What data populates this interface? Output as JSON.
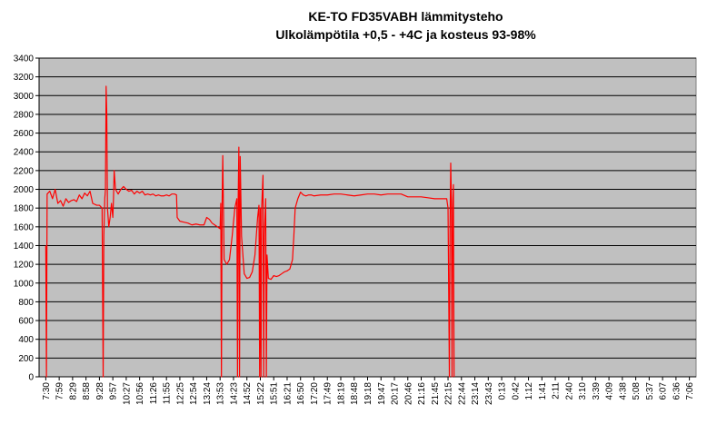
{
  "chart_data": {
    "type": "line",
    "title": "KE-TO FD35VABH lämmitysteho",
    "subtitle": "Ulkolämpötila  +0,5 - +4C ja kosteus 93-98%",
    "xlabel": "",
    "ylabel": "",
    "ylim": [
      0,
      3400
    ],
    "y_ticks": [
      0,
      200,
      400,
      600,
      800,
      1000,
      1200,
      1400,
      1600,
      1800,
      2000,
      2200,
      2400,
      2600,
      2800,
      3000,
      3200,
      3400
    ],
    "x_ticks": [
      "7:30",
      "7:59",
      "8:29",
      "8:58",
      "9:28",
      "9:57",
      "10:27",
      "10:56",
      "11:26",
      "11:55",
      "12:25",
      "12:54",
      "13:24",
      "13:53",
      "14:23",
      "14:52",
      "15:22",
      "15:51",
      "16:21",
      "16:50",
      "17:20",
      "17:49",
      "18:19",
      "18:48",
      "19:18",
      "19:47",
      "20:17",
      "20:46",
      "21:16",
      "21:45",
      "22:15",
      "22:44",
      "23:14",
      "23:43",
      "0:13",
      "0:42",
      "1:12",
      "1:41",
      "2:11",
      "2:40",
      "3:10",
      "3:39",
      "4:09",
      "4:38",
      "5:08",
      "5:37",
      "6:07",
      "6:36",
      "7:06"
    ],
    "grid": true,
    "legend": "none",
    "series_color": "#ff0000",
    "plot_background": "#c0c0c0",
    "series": [
      {
        "name": "",
        "points": [
          [
            0,
            1400
          ],
          [
            0.05,
            0
          ],
          [
            0.1,
            1950
          ],
          [
            0.3,
            1980
          ],
          [
            0.5,
            1900
          ],
          [
            0.7,
            2000
          ],
          [
            0.9,
            1850
          ],
          [
            1.1,
            1880
          ],
          [
            1.3,
            1820
          ],
          [
            1.5,
            1900
          ],
          [
            1.7,
            1860
          ],
          [
            1.9,
            1880
          ],
          [
            2.1,
            1890
          ],
          [
            2.3,
            1870
          ],
          [
            2.5,
            1940
          ],
          [
            2.7,
            1900
          ],
          [
            2.9,
            1960
          ],
          [
            3.1,
            1930
          ],
          [
            3.3,
            1980
          ],
          [
            3.5,
            1850
          ],
          [
            3.8,
            1830
          ],
          [
            4.0,
            1830
          ],
          [
            4.2,
            1800
          ],
          [
            4.28,
            0
          ],
          [
            4.33,
            1500
          ],
          [
            4.4,
            1900
          ],
          [
            4.45,
            2000
          ],
          [
            4.5,
            3100
          ],
          [
            4.55,
            2800
          ],
          [
            4.6,
            1800
          ],
          [
            4.7,
            1600
          ],
          [
            4.8,
            1700
          ],
          [
            4.9,
            1850
          ],
          [
            5.0,
            1700
          ],
          [
            5.05,
            1900
          ],
          [
            5.1,
            2200
          ],
          [
            5.2,
            2000
          ],
          [
            5.4,
            1950
          ],
          [
            5.6,
            2000
          ],
          [
            5.8,
            2030
          ],
          [
            6.0,
            2000
          ],
          [
            6.2,
            1980
          ],
          [
            6.4,
            1990
          ],
          [
            6.6,
            1950
          ],
          [
            6.8,
            1980
          ],
          [
            7.0,
            1960
          ],
          [
            7.2,
            1980
          ],
          [
            7.4,
            1940
          ],
          [
            7.6,
            1950
          ],
          [
            7.8,
            1940
          ],
          [
            8.0,
            1950
          ],
          [
            8.2,
            1930
          ],
          [
            8.4,
            1940
          ],
          [
            8.6,
            1930
          ],
          [
            8.8,
            1930
          ],
          [
            9.0,
            1940
          ],
          [
            9.2,
            1930
          ],
          [
            9.4,
            1950
          ],
          [
            9.6,
            1950
          ],
          [
            9.75,
            1940
          ],
          [
            9.8,
            1700
          ],
          [
            10.0,
            1660
          ],
          [
            10.3,
            1650
          ],
          [
            10.6,
            1640
          ],
          [
            10.9,
            1620
          ],
          [
            11.2,
            1630
          ],
          [
            11.5,
            1620
          ],
          [
            11.8,
            1620
          ],
          [
            12.0,
            1700
          ],
          [
            12.2,
            1680
          ],
          [
            12.4,
            1640
          ],
          [
            12.6,
            1620
          ],
          [
            12.8,
            1600
          ],
          [
            13.0,
            1580
          ],
          [
            13.05,
            1850
          ],
          [
            13.1,
            0
          ],
          [
            13.15,
            1850
          ],
          [
            13.2,
            2360
          ],
          [
            13.25,
            1800
          ],
          [
            13.3,
            1250
          ],
          [
            13.5,
            1200
          ],
          [
            13.7,
            1250
          ],
          [
            13.9,
            1500
          ],
          [
            14.1,
            1800
          ],
          [
            14.25,
            1900
          ],
          [
            14.3,
            0
          ],
          [
            14.35,
            1900
          ],
          [
            14.4,
            2450
          ],
          [
            14.45,
            0
          ],
          [
            14.5,
            2350
          ],
          [
            14.6,
            1500
          ],
          [
            14.8,
            1100
          ],
          [
            15.0,
            1050
          ],
          [
            15.2,
            1060
          ],
          [
            15.4,
            1120
          ],
          [
            15.6,
            1300
          ],
          [
            15.8,
            1700
          ],
          [
            15.9,
            1830
          ],
          [
            15.95,
            0
          ],
          [
            16.0,
            1800
          ],
          [
            16.05,
            0
          ],
          [
            16.1,
            1800
          ],
          [
            16.2,
            2150
          ],
          [
            16.25,
            0
          ],
          [
            16.3,
            1500
          ],
          [
            16.4,
            1900
          ],
          [
            16.45,
            0
          ],
          [
            16.5,
            1300
          ],
          [
            16.6,
            1050
          ],
          [
            16.8,
            1040
          ],
          [
            17.0,
            1080
          ],
          [
            17.2,
            1070
          ],
          [
            17.4,
            1080
          ],
          [
            17.6,
            1100
          ],
          [
            17.8,
            1120
          ],
          [
            18.0,
            1130
          ],
          [
            18.2,
            1150
          ],
          [
            18.4,
            1250
          ],
          [
            18.5,
            1500
          ],
          [
            18.6,
            1800
          ],
          [
            18.8,
            1900
          ],
          [
            19.0,
            1970
          ],
          [
            19.2,
            1940
          ],
          [
            19.4,
            1930
          ],
          [
            19.6,
            1940
          ],
          [
            19.8,
            1940
          ],
          [
            20.0,
            1930
          ],
          [
            20.5,
            1940
          ],
          [
            21.0,
            1940
          ],
          [
            21.5,
            1950
          ],
          [
            22.0,
            1950
          ],
          [
            22.5,
            1940
          ],
          [
            23.0,
            1930
          ],
          [
            23.5,
            1940
          ],
          [
            24.0,
            1950
          ],
          [
            24.5,
            1950
          ],
          [
            25.0,
            1940
          ],
          [
            25.5,
            1950
          ],
          [
            26.0,
            1950
          ],
          [
            26.5,
            1950
          ],
          [
            27.0,
            1920
          ],
          [
            27.5,
            1920
          ],
          [
            28.0,
            1920
          ],
          [
            28.5,
            1910
          ],
          [
            29.0,
            1900
          ],
          [
            29.5,
            1900
          ],
          [
            29.9,
            1900
          ],
          [
            30.0,
            1800
          ],
          [
            30.1,
            0
          ],
          [
            30.15,
            1600
          ],
          [
            30.2,
            2280
          ],
          [
            30.25,
            1900
          ],
          [
            30.3,
            0
          ],
          [
            30.35,
            1800
          ],
          [
            30.4,
            2050
          ],
          [
            30.45,
            0
          ]
        ]
      }
    ]
  }
}
